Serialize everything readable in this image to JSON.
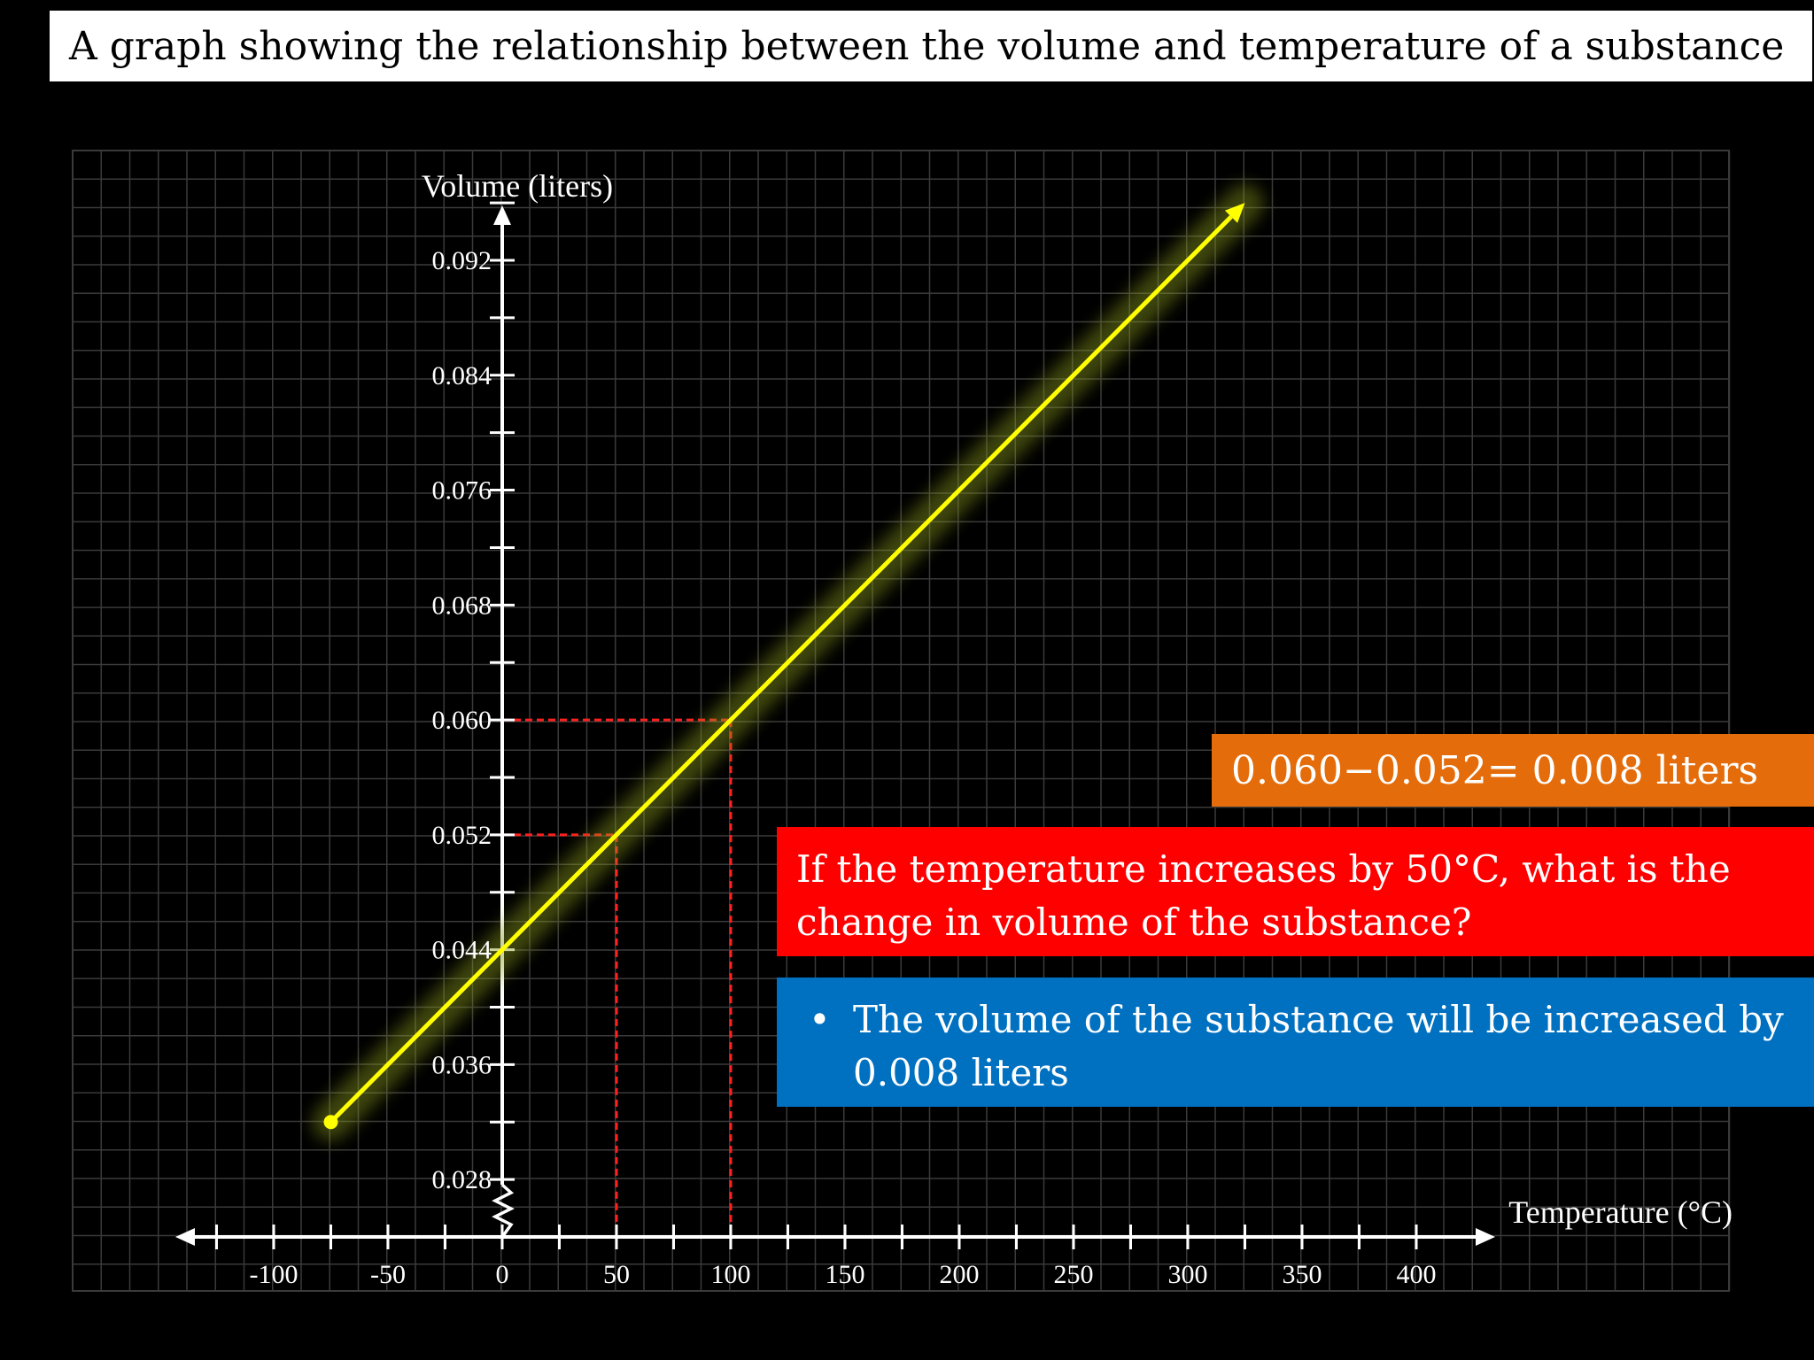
{
  "header": {
    "title": "A graph showing the relationship between the volume and temperature of a substance"
  },
  "chart_data": {
    "type": "line",
    "title": "A graph showing the relationship between the volume and temperature of a substance",
    "xlabel": "Temperature (°C)",
    "ylabel": "Volume (liters)",
    "x_ticks": [
      -100,
      -50,
      0,
      50,
      100,
      150,
      200,
      250,
      300,
      350,
      400
    ],
    "y_ticks": [
      0.028,
      0.036,
      0.044,
      0.052,
      0.06,
      0.068,
      0.076,
      0.084,
      0.092
    ],
    "xlim": [
      -142,
      432
    ],
    "ylim": [
      0.024,
      0.097
    ],
    "grid": true,
    "series": [
      {
        "color": "#ffff00",
        "x": [
          -75,
          325
        ],
        "y": [
          0.032,
          0.096
        ]
      }
    ],
    "highlight_points": [
      {
        "x": 50,
        "y": 0.052
      },
      {
        "x": 100,
        "y": 0.06
      }
    ],
    "highlight_color": "#ff2020",
    "y_axis_break": true
  },
  "annotations": {
    "calculation": "0.060−0.052= 0.008 liters",
    "question": "If the temperature increases by 50°C, what is the change in volume of the substance?",
    "answer_bullet": "•",
    "answer": "The volume of the substance will be increased by 0.008 liters"
  },
  "colors": {
    "background": "#000000",
    "grid": "#3a3a3a",
    "calc_box": "#e46c0a",
    "question_box": "#ff0000",
    "answer_box": "#0070c0"
  }
}
